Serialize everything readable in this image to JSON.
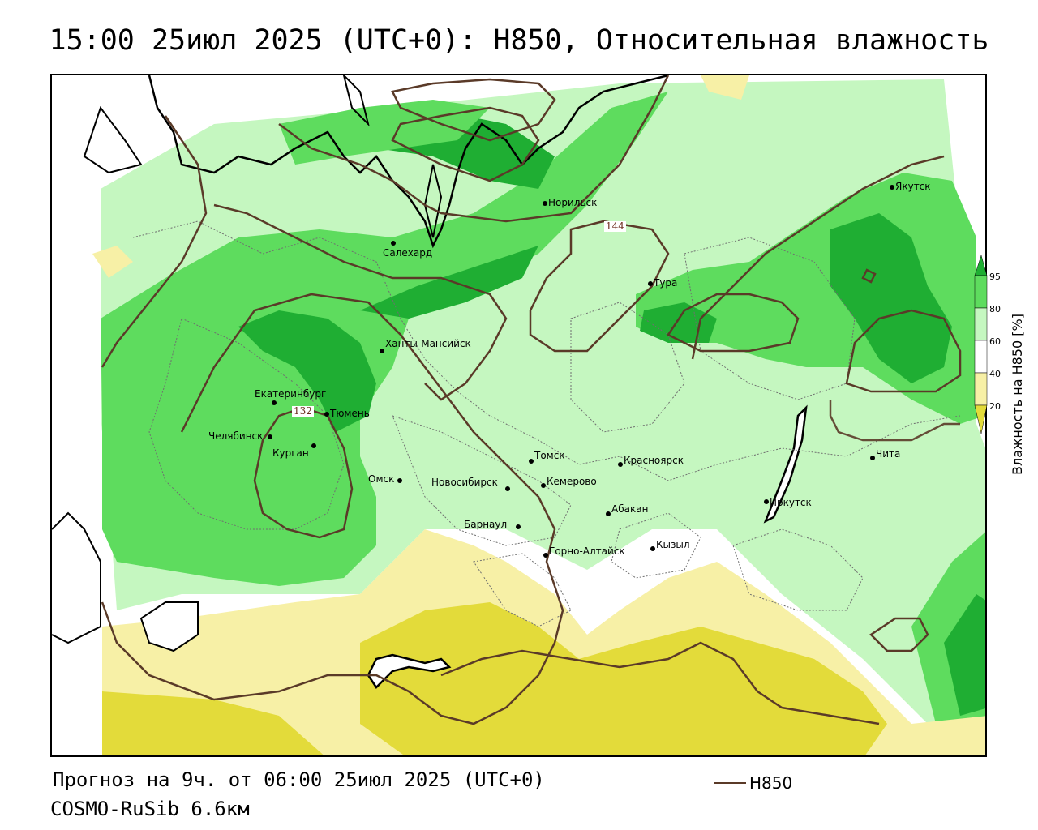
{
  "title": "15:00 25июл 2025 (UTC+0): H850, Относительная влажность",
  "footer": {
    "forecast": "Прогноз на 9ч. от 06:00 25июл 2025 (UTC+0)",
    "model": "COSMO-RuSib 6.6км"
  },
  "legend": {
    "contour_label": "H850",
    "colorbar_title": "Влажность на H850 [%]",
    "ticks": [
      "95",
      "80",
      "60",
      "40",
      "20"
    ],
    "colors": {
      "very_dry": "#e3db3a",
      "dry": "#f7f0a6",
      "neutral": "#ffffff",
      "moist": "#c5f7c0",
      "wet": "#5edc5e",
      "very_wet": "#1fae33",
      "contour": "#5a3a28"
    }
  },
  "cities": [
    {
      "name": "Норильск"
    },
    {
      "name": "Якутск"
    },
    {
      "name": "Салехард"
    },
    {
      "name": "Тура"
    },
    {
      "name": "Ханты-Мансийск"
    },
    {
      "name": "Екатеринбург"
    },
    {
      "name": "Тюмень"
    },
    {
      "name": "Челябинск"
    },
    {
      "name": "Курган"
    },
    {
      "name": "Омск"
    },
    {
      "name": "Новосибирск"
    },
    {
      "name": "Томск"
    },
    {
      "name": "Кемерово"
    },
    {
      "name": "Красноярск"
    },
    {
      "name": "Барнаул"
    },
    {
      "name": "Абакан"
    },
    {
      "name": "Горно-Алтайск"
    },
    {
      "name": "Кызыл"
    },
    {
      "name": "Иркутск"
    },
    {
      "name": "Чита"
    }
  ],
  "contour_labels": [
    "144",
    "132"
  ]
}
